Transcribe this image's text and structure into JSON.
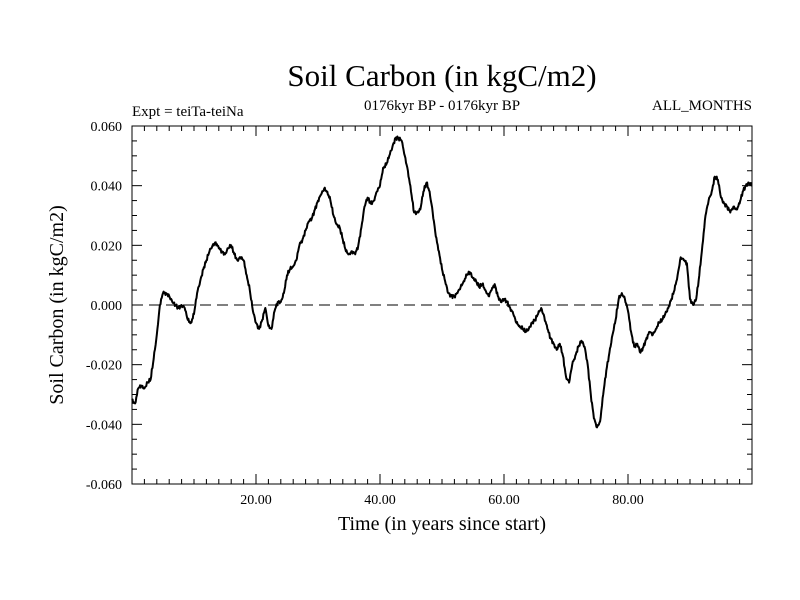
{
  "chart_data": {
    "type": "line",
    "title": "Soil Carbon (in kgC/m2)",
    "subtitle_left": "Expt = teiTa-teiNa",
    "subtitle_center": "0176kyr BP - 0176kyr BP",
    "subtitle_right": "ALL_MONTHS",
    "xlabel": "Time (in years since start)",
    "ylabel": "Soil Carbon (in kgC/m2)",
    "xlim": [
      0,
      100
    ],
    "ylim": [
      -0.06,
      0.06
    ],
    "x_ticks": [
      20,
      40,
      60,
      80
    ],
    "x_tick_labels": [
      "20.00",
      "40.00",
      "60.00",
      "80.00"
    ],
    "y_ticks": [
      -0.06,
      -0.04,
      -0.02,
      0.0,
      0.02,
      0.04,
      0.06
    ],
    "y_tick_labels": [
      "-0.060",
      "-0.040",
      "-0.020",
      "0.000",
      "0.020",
      "0.040",
      "0.060"
    ],
    "reference_line": {
      "y": 0.0,
      "style": "dashed"
    },
    "series": [
      {
        "name": "Soil Carbon",
        "x": [
          0,
          0.5,
          1,
          1.5,
          2,
          2.5,
          3,
          3.5,
          4,
          4.5,
          5,
          5.5,
          6,
          6.5,
          7,
          7.5,
          8,
          8.5,
          9,
          9.5,
          10,
          10.5,
          11,
          11.5,
          12,
          12.5,
          13,
          13.5,
          14,
          14.5,
          15,
          15.5,
          16,
          16.5,
          17,
          17.5,
          18,
          18.5,
          19,
          19.5,
          20,
          20.5,
          21,
          21.5,
          22,
          22.5,
          23,
          23.5,
          24,
          24.5,
          25,
          25.5,
          26,
          26.5,
          27,
          27.5,
          28,
          28.5,
          29,
          29.5,
          30,
          30.5,
          31,
          31.5,
          32,
          32.5,
          33,
          33.5,
          34,
          34.5,
          35,
          35.5,
          36,
          36.5,
          37,
          37.5,
          38,
          38.5,
          39,
          39.5,
          40,
          40.5,
          41,
          41.5,
          42,
          42.5,
          43,
          43.5,
          44,
          44.5,
          45,
          45.5,
          46,
          46.5,
          47,
          47.5,
          48,
          48.5,
          49,
          49.5,
          50,
          50.5,
          51,
          51.5,
          52,
          52.5,
          53,
          53.5,
          54,
          54.5,
          55,
          55.5,
          56,
          56.5,
          57,
          57.5,
          58,
          58.5,
          59,
          59.5,
          60,
          60.5,
          61,
          61.5,
          62,
          62.5,
          63,
          63.5,
          64,
          64.5,
          65,
          65.5,
          66,
          66.5,
          67,
          67.5,
          68,
          68.5,
          69,
          69.5,
          70,
          70.5,
          71,
          71.5,
          72,
          72.5,
          73,
          73.5,
          74,
          74.5,
          75,
          75.5,
          76,
          76.5,
          77,
          77.5,
          78,
          78.5,
          79,
          79.5,
          80,
          80.5,
          81,
          81.5,
          82,
          82.5,
          83,
          83.5,
          84,
          84.5,
          85,
          85.5,
          86,
          86.5,
          87,
          87.5,
          88,
          88.5,
          89,
          89.5,
          90,
          90.5,
          91,
          91.5,
          92,
          92.5,
          93,
          93.5,
          94,
          94.5,
          95,
          95.5,
          96,
          96.5,
          97,
          97.5,
          98,
          98.5,
          99,
          99.5,
          100
        ],
        "values": [
          -0.032,
          -0.033,
          -0.028,
          -0.027,
          -0.028,
          -0.026,
          -0.025,
          -0.018,
          -0.01,
          0.0,
          0.004,
          0.004,
          0.003,
          0.001,
          0.0,
          -0.001,
          0.0,
          -0.001,
          -0.005,
          -0.006,
          -0.003,
          0.004,
          0.008,
          0.012,
          0.015,
          0.018,
          0.02,
          0.021,
          0.019,
          0.018,
          0.017,
          0.019,
          0.02,
          0.017,
          0.015,
          0.016,
          0.015,
          0.01,
          0.005,
          -0.002,
          -0.006,
          -0.008,
          -0.005,
          -0.001,
          -0.007,
          -0.008,
          -0.002,
          0.001,
          0.001,
          0.004,
          0.01,
          0.012,
          0.013,
          0.015,
          0.02,
          0.022,
          0.025,
          0.028,
          0.029,
          0.032,
          0.035,
          0.037,
          0.039,
          0.038,
          0.035,
          0.03,
          0.027,
          0.026,
          0.022,
          0.018,
          0.017,
          0.018,
          0.017,
          0.02,
          0.026,
          0.033,
          0.036,
          0.034,
          0.035,
          0.038,
          0.04,
          0.046,
          0.047,
          0.05,
          0.053,
          0.056,
          0.056,
          0.055,
          0.05,
          0.045,
          0.038,
          0.031,
          0.031,
          0.032,
          0.038,
          0.041,
          0.038,
          0.031,
          0.023,
          0.018,
          0.012,
          0.008,
          0.004,
          0.003,
          0.003,
          0.004,
          0.006,
          0.008,
          0.01,
          0.011,
          0.009,
          0.008,
          0.006,
          0.007,
          0.005,
          0.003,
          0.005,
          0.007,
          0.003,
          0.001,
          0.002,
          0.001,
          -0.001,
          -0.003,
          -0.006,
          -0.007,
          -0.008,
          -0.009,
          -0.008,
          -0.006,
          -0.005,
          -0.003,
          -0.001,
          -0.004,
          -0.008,
          -0.011,
          -0.013,
          -0.015,
          -0.013,
          -0.017,
          -0.024,
          -0.026,
          -0.02,
          -0.017,
          -0.014,
          -0.012,
          -0.014,
          -0.02,
          -0.03,
          -0.038,
          -0.041,
          -0.039,
          -0.03,
          -0.022,
          -0.016,
          -0.01,
          -0.005,
          0.002,
          0.004,
          0.002,
          -0.002,
          -0.009,
          -0.014,
          -0.013,
          -0.016,
          -0.014,
          -0.011,
          -0.009,
          -0.01,
          -0.008,
          -0.006,
          -0.005,
          -0.003,
          -0.001,
          0.002,
          0.005,
          0.01,
          0.016,
          0.015,
          0.014,
          0.002,
          0.0,
          0.002,
          0.01,
          0.02,
          0.03,
          0.035,
          0.038,
          0.043,
          0.042,
          0.036,
          0.034,
          0.033,
          0.031,
          0.033,
          0.032,
          0.034,
          0.038,
          0.04,
          0.041,
          0.04
        ]
      }
    ]
  }
}
